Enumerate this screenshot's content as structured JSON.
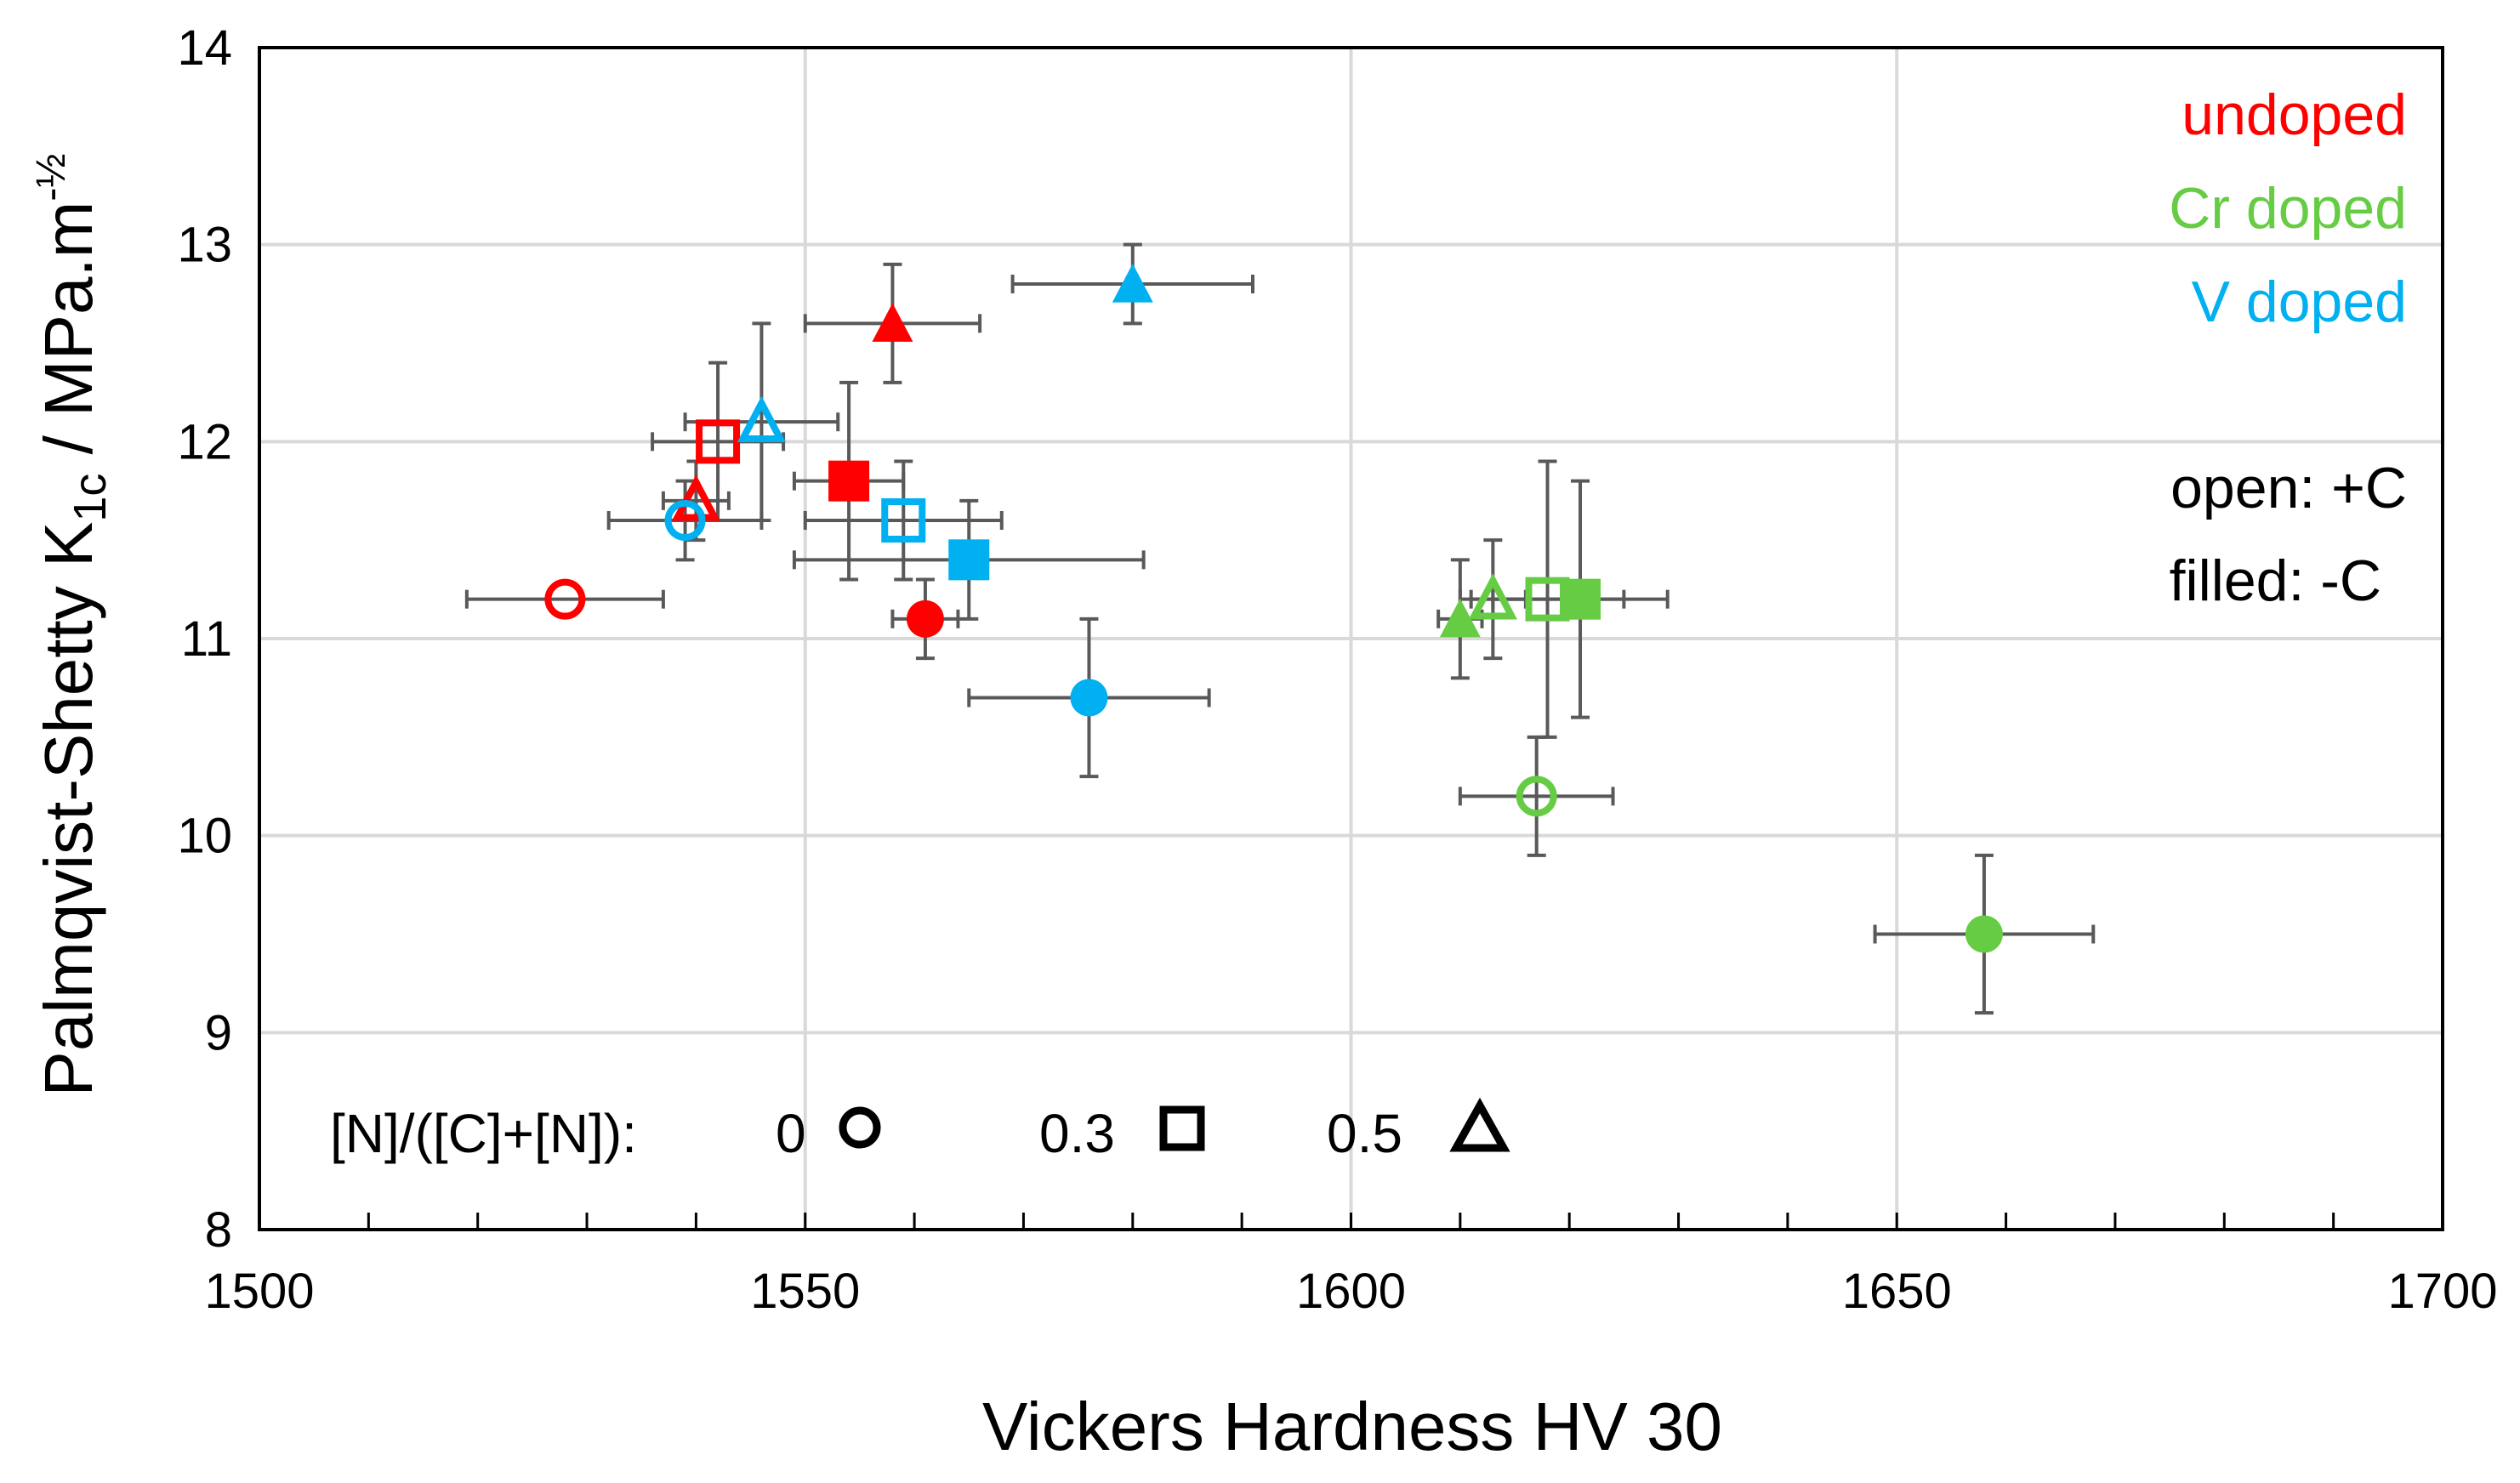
{
  "chart_data": {
    "type": "scatter",
    "title": "",
    "xlabel": "Vickers Hardness HV 30",
    "ylabel_main": "Palmqvist-Shetty K",
    "ylabel_sub": "1c",
    "ylabel_units": " / MPa.m",
    "ylabel_sup": "-½",
    "xlim": [
      1500,
      1700
    ],
    "ylim": [
      8,
      14
    ],
    "xticks": [
      1500,
      1550,
      1600,
      1650,
      1700
    ],
    "yticks": [
      8,
      9,
      10,
      11,
      12,
      13,
      14
    ],
    "grid": true,
    "colors": {
      "undoped": "#ff0000",
      "cr": "#66cc44",
      "v": "#00b0f0",
      "error": "#595959"
    },
    "legend": {
      "placement": "top-right",
      "undoped": "undoped",
      "cr": "Cr doped",
      "v": "V doped",
      "open": "open: +C",
      "filled": "filled: -C"
    },
    "shape_key": {
      "label": "[N]/([C]+[N]):",
      "items": [
        {
          "value": "0",
          "marker": "circle"
        },
        {
          "value": "0.3",
          "marker": "square"
        },
        {
          "value": "0.5",
          "marker": "triangle"
        }
      ]
    },
    "series": [
      {
        "name": "undoped",
        "color_key": "undoped",
        "points": [
          {
            "x": 1528,
            "y": 11.2,
            "xerr": 9,
            "yerr": 0,
            "marker": "circle",
            "fill": "open"
          },
          {
            "x": 1542,
            "y": 12.0,
            "xerr": 6,
            "yerr": 0.4,
            "marker": "square",
            "fill": "open"
          },
          {
            "x": 1540,
            "y": 11.7,
            "xerr": 3,
            "yerr": 0.2,
            "marker": "triangle",
            "fill": "open"
          },
          {
            "x": 1561,
            "y": 11.1,
            "xerr": 3,
            "yerr": 0.2,
            "marker": "circle",
            "fill": "filled"
          },
          {
            "x": 1554,
            "y": 11.8,
            "xerr": 5,
            "yerr": 0.5,
            "marker": "square",
            "fill": "filled"
          },
          {
            "x": 1558,
            "y": 12.6,
            "xerr": 8,
            "yerr": 0.3,
            "marker": "triangle",
            "fill": "filled"
          }
        ]
      },
      {
        "name": "Cr doped",
        "color_key": "cr",
        "points": [
          {
            "x": 1617,
            "y": 10.2,
            "xerr": 7,
            "yerr": 0.3,
            "marker": "circle",
            "fill": "open"
          },
          {
            "x": 1618,
            "y": 11.2,
            "xerr": 7,
            "yerr": 0.7,
            "marker": "square",
            "fill": "open"
          },
          {
            "x": 1613,
            "y": 11.2,
            "xerr": 3,
            "yerr": 0.3,
            "marker": "triangle",
            "fill": "open"
          },
          {
            "x": 1658,
            "y": 9.5,
            "xerr": 10,
            "yerr": 0.4,
            "marker": "circle",
            "fill": "filled"
          },
          {
            "x": 1621,
            "y": 11.2,
            "xerr": 8,
            "yerr": 0.6,
            "marker": "square",
            "fill": "filled"
          },
          {
            "x": 1610,
            "y": 11.1,
            "xerr": 2,
            "yerr": 0.3,
            "marker": "triangle",
            "fill": "filled"
          }
        ]
      },
      {
        "name": "V doped",
        "color_key": "v",
        "points": [
          {
            "x": 1539,
            "y": 11.6,
            "xerr": 7,
            "yerr": 0.2,
            "marker": "circle",
            "fill": "open"
          },
          {
            "x": 1559,
            "y": 11.6,
            "xerr": 9,
            "yerr": 0.3,
            "marker": "square",
            "fill": "open"
          },
          {
            "x": 1546,
            "y": 12.1,
            "xerr": 7,
            "yerr": 0.5,
            "marker": "triangle",
            "fill": "open"
          },
          {
            "x": 1576,
            "y": 10.7,
            "xerr": 11,
            "yerr": 0.4,
            "marker": "circle",
            "fill": "filled"
          },
          {
            "x": 1565,
            "y": 11.4,
            "xerr": 16,
            "yerr": 0.3,
            "marker": "square",
            "fill": "filled"
          },
          {
            "x": 1580,
            "y": 12.8,
            "xerr": 11,
            "yerr": 0.2,
            "marker": "triangle",
            "fill": "filled"
          }
        ]
      }
    ]
  }
}
